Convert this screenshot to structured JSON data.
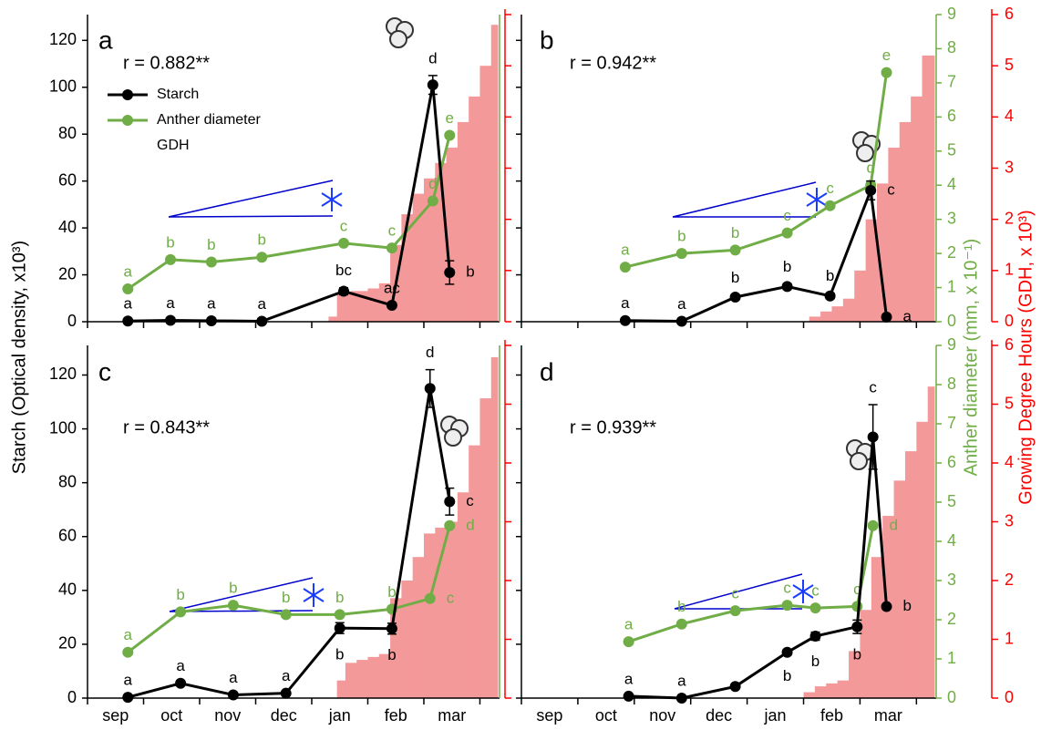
{
  "axis_titles": {
    "y": "Starch (Optical density, x10³)",
    "y2": "Anther diameter (mm, x 10⁻¹)",
    "y3": "Growing Degree Hours (GDH, x 10³)",
    "y2color": "#70ad47",
    "y3color": "#ff0000"
  },
  "chart_data": [
    {
      "type": "line",
      "panel": "a",
      "annotation": "r = 0.882**",
      "legend": true,
      "xlim": [
        0,
        7.35
      ],
      "xticks": [
        0,
        1,
        2,
        3,
        4,
        5,
        6,
        7
      ],
      "ylim": [
        0,
        131
      ],
      "yticks": [
        0,
        20,
        40,
        60,
        80,
        100,
        120
      ],
      "ytick_labels": true,
      "y2lim": [
        0,
        9
      ],
      "y3lim": [
        0,
        6
      ],
      "y3ticks": [
        0,
        1,
        2,
        3,
        4,
        5,
        6
      ],
      "y3tick_labels": false,
      "series": [
        {
          "name": "Starch",
          "color": "#000000",
          "x": [
            0.72,
            1.48,
            2.21,
            3.11,
            4.57,
            5.43,
            6.16,
            6.46
          ],
          "values": [
            0.3,
            0.6,
            0.4,
            0.2,
            13,
            7,
            101,
            21
          ],
          "errors": [
            null,
            null,
            null,
            null,
            1.5,
            null,
            4,
            5
          ],
          "letters": [
            "a",
            "a",
            "a",
            "a",
            "bc",
            "ac",
            "d",
            "b"
          ]
        },
        {
          "name": "Anther diameter",
          "color": "#70ad47",
          "axis": "y2",
          "x": [
            0.72,
            1.48,
            2.21,
            3.11,
            4.57,
            5.43,
            6.16,
            6.46
          ],
          "values": [
            0.96,
            1.82,
            1.75,
            1.89,
            2.3,
            2.16,
            3.54,
            5.46
          ],
          "letters": [
            "a",
            "b",
            "b",
            "b",
            "c",
            "c",
            "d",
            "e"
          ]
        },
        {
          "name": "GDH",
          "color": "#f4999a",
          "axis": "y3",
          "x": [
            4.3,
            4.45,
            4.7,
            5.0,
            5.2,
            5.4,
            5.6,
            5.8,
            6.0,
            6.2,
            6.4,
            6.6,
            6.8,
            7.0,
            7.2
          ],
          "values": [
            0.1,
            0.55,
            0.6,
            0.65,
            0.75,
            1.5,
            2.1,
            2.5,
            2.8,
            3.1,
            3.4,
            3.9,
            4.4,
            5.0,
            5.8
          ]
        }
      ]
    },
    {
      "type": "line",
      "panel": "b",
      "annotation": "r = 0.942**",
      "legend": false,
      "xlim": [
        0,
        7.35
      ],
      "xticks": [
        0,
        1,
        2,
        3,
        4,
        5,
        6,
        7
      ],
      "ylim": [
        0,
        131
      ],
      "yticks": [
        0,
        20,
        40,
        60,
        80,
        100,
        120
      ],
      "ytick_labels": false,
      "y2lim": [
        0,
        9
      ],
      "y2ticks": [
        0,
        1,
        2,
        3,
        4,
        5,
        6,
        7,
        8,
        9
      ],
      "y3lim": [
        0,
        6
      ],
      "y3ticks": [
        0,
        1,
        2,
        3,
        4,
        5,
        6
      ],
      "y3tick_labels": true,
      "series": [
        {
          "color": "#000000",
          "x": [
            1.84,
            2.84,
            3.79,
            4.71,
            5.47,
            6.19,
            6.47
          ],
          "values": [
            0.5,
            0.2,
            10.5,
            15,
            11,
            56,
            2
          ],
          "errors": [
            null,
            null,
            1,
            1.2,
            1.2,
            4,
            null
          ],
          "letters": [
            "a",
            "a",
            "b",
            "b",
            "b",
            "c",
            "a"
          ]
        },
        {
          "color": "#70ad47",
          "axis": "y2",
          "x": [
            1.84,
            2.84,
            3.79,
            4.71,
            5.47,
            6.19,
            6.47
          ],
          "values": [
            1.6,
            2.0,
            2.1,
            2.6,
            3.4,
            4.0,
            7.3
          ],
          "letters": [
            "a",
            "b",
            "b",
            "c",
            "c",
            "d",
            "e"
          ]
        },
        {
          "color": "#f4999a",
          "axis": "y3",
          "x": [
            5.1,
            5.3,
            5.5,
            5.7,
            5.9,
            6.1,
            6.3,
            6.5,
            6.7,
            6.9,
            7.1
          ],
          "values": [
            0.1,
            0.2,
            0.3,
            0.45,
            1.0,
            2.0,
            2.7,
            3.4,
            3.9,
            4.4,
            5.2
          ]
        }
      ]
    },
    {
      "type": "line",
      "panel": "c",
      "annotation": "r = 0.843**",
      "legend": false,
      "xlim": [
        0,
        7.35
      ],
      "xticks": [
        0,
        1,
        2,
        3,
        4,
        5,
        6,
        7
      ],
      "categories": [
        "sep",
        "oct",
        "nov",
        "dec",
        "jan",
        "feb",
        "mar"
      ],
      "ylim": [
        0,
        131
      ],
      "yticks": [
        0,
        20,
        40,
        60,
        80,
        100,
        120
      ],
      "ytick_labels": true,
      "y2lim": [
        0,
        9
      ],
      "y3lim": [
        0,
        6
      ],
      "y3ticks": [
        0,
        1,
        2,
        3,
        4,
        5,
        6
      ],
      "y3tick_labels": false,
      "series": [
        {
          "color": "#000000",
          "x": [
            0.72,
            1.66,
            2.6,
            3.54,
            4.5,
            5.43,
            6.11,
            6.46
          ],
          "values": [
            0.3,
            5.5,
            1.2,
            1.8,
            26,
            25.8,
            115,
            73
          ],
          "errors": [
            null,
            null,
            null,
            null,
            2,
            2,
            7,
            5
          ],
          "letters": [
            "a",
            "a",
            "a",
            "a",
            "b",
            "b",
            "d",
            "c"
          ]
        },
        {
          "color": "#70ad47",
          "axis": "y2",
          "x": [
            0.72,
            1.66,
            2.6,
            3.54,
            4.5,
            5.43,
            6.11,
            6.46
          ],
          "values": [
            1.17,
            2.2,
            2.37,
            2.13,
            2.13,
            2.27,
            2.54,
            4.4
          ],
          "letters": [
            "a",
            "b",
            "b",
            "b",
            "b",
            "b",
            "c",
            "d"
          ]
        },
        {
          "color": "#f4999a",
          "axis": "y3",
          "x": [
            4.45,
            4.6,
            4.8,
            5.0,
            5.2,
            5.4,
            5.6,
            5.8,
            6.0,
            6.2,
            6.4,
            6.6,
            6.8,
            7.0,
            7.2
          ],
          "values": [
            0.3,
            0.6,
            0.65,
            0.7,
            0.75,
            1.7,
            2.0,
            2.4,
            2.8,
            2.9,
            3.0,
            3.5,
            4.3,
            5.1,
            5.8
          ]
        }
      ]
    },
    {
      "type": "line",
      "panel": "d",
      "annotation": "r = 0.939**",
      "legend": false,
      "xlim": [
        0,
        7.35
      ],
      "xticks": [
        0,
        1,
        2,
        3,
        4,
        5,
        6,
        7
      ],
      "categories": [
        "sep",
        "oct",
        "nov",
        "dec",
        "jan",
        "feb",
        "mar"
      ],
      "ylim": [
        0,
        131
      ],
      "yticks": [
        0,
        20,
        40,
        60,
        80,
        100,
        120
      ],
      "ytick_labels": false,
      "y2lim": [
        0,
        9
      ],
      "y2ticks": [
        0,
        1,
        2,
        3,
        4,
        5,
        6,
        7,
        8,
        9
      ],
      "y3lim": [
        0,
        6
      ],
      "y3ticks": [
        0,
        1,
        2,
        3,
        4,
        5,
        6
      ],
      "y3tick_labels": true,
      "series": [
        {
          "color": "#000000",
          "x": [
            1.9,
            2.84,
            3.79,
            4.71,
            5.21,
            5.95,
            6.23,
            6.47
          ],
          "values": [
            0.7,
            0,
            4.3,
            17,
            23,
            26.5,
            97,
            34
          ],
          "errors": [
            null,
            null,
            null,
            1,
            1.5,
            2.5,
            12,
            null
          ],
          "letters": [
            "a",
            "a",
            null,
            "b",
            "b",
            "b",
            "c",
            "b"
          ]
        },
        {
          "color": "#70ad47",
          "axis": "y2",
          "x": [
            1.9,
            2.84,
            3.79,
            4.71,
            5.21,
            5.95,
            6.23
          ],
          "values": [
            1.44,
            1.89,
            2.23,
            2.37,
            2.3,
            2.34,
            4.4
          ],
          "letters": [
            "a",
            "b",
            "c",
            "c",
            "c",
            "c",
            "d"
          ]
        },
        {
          "color": "#f4999a",
          "axis": "y3",
          "x": [
            5.0,
            5.2,
            5.4,
            5.6,
            5.8,
            6.0,
            6.2,
            6.4,
            6.6,
            6.8,
            7.0,
            7.2
          ],
          "values": [
            0.1,
            0.2,
            0.25,
            0.3,
            0.8,
            1.5,
            2.4,
            3.1,
            3.7,
            4.2,
            4.7,
            5.3
          ]
        }
      ]
    }
  ]
}
